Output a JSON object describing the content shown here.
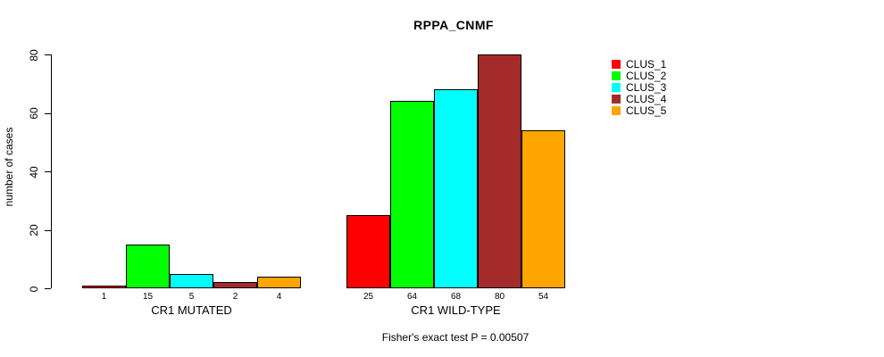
{
  "chart_data": {
    "type": "bar",
    "title": "RPPA_CNMF",
    "xlabel": "",
    "ylabel": "number of cases",
    "ylim": [
      0,
      80
    ],
    "yticks": [
      0,
      20,
      40,
      60,
      80
    ],
    "grid": false,
    "legend_position": "right-outside",
    "bar_value_labels": true,
    "background_color": "#ffffff",
    "bar_border_color": "#000000",
    "categories": [
      "CR1 MUTATED",
      "CR1 WILD-TYPE"
    ],
    "series": [
      {
        "name": "CLUS_1",
        "color": "#ff0000",
        "values": [
          1,
          25
        ]
      },
      {
        "name": "CLUS_2",
        "color": "#00ff00",
        "values": [
          15,
          64
        ]
      },
      {
        "name": "CLUS_3",
        "color": "#00ffff",
        "values": [
          5,
          68
        ]
      },
      {
        "name": "CLUS_4",
        "color": "#a52a2a",
        "values": [
          2,
          80
        ]
      },
      {
        "name": "CLUS_5",
        "color": "#ffa500",
        "values": [
          4,
          54
        ]
      }
    ],
    "annotation": "Fisher's exact test P = 0.00507"
  }
}
